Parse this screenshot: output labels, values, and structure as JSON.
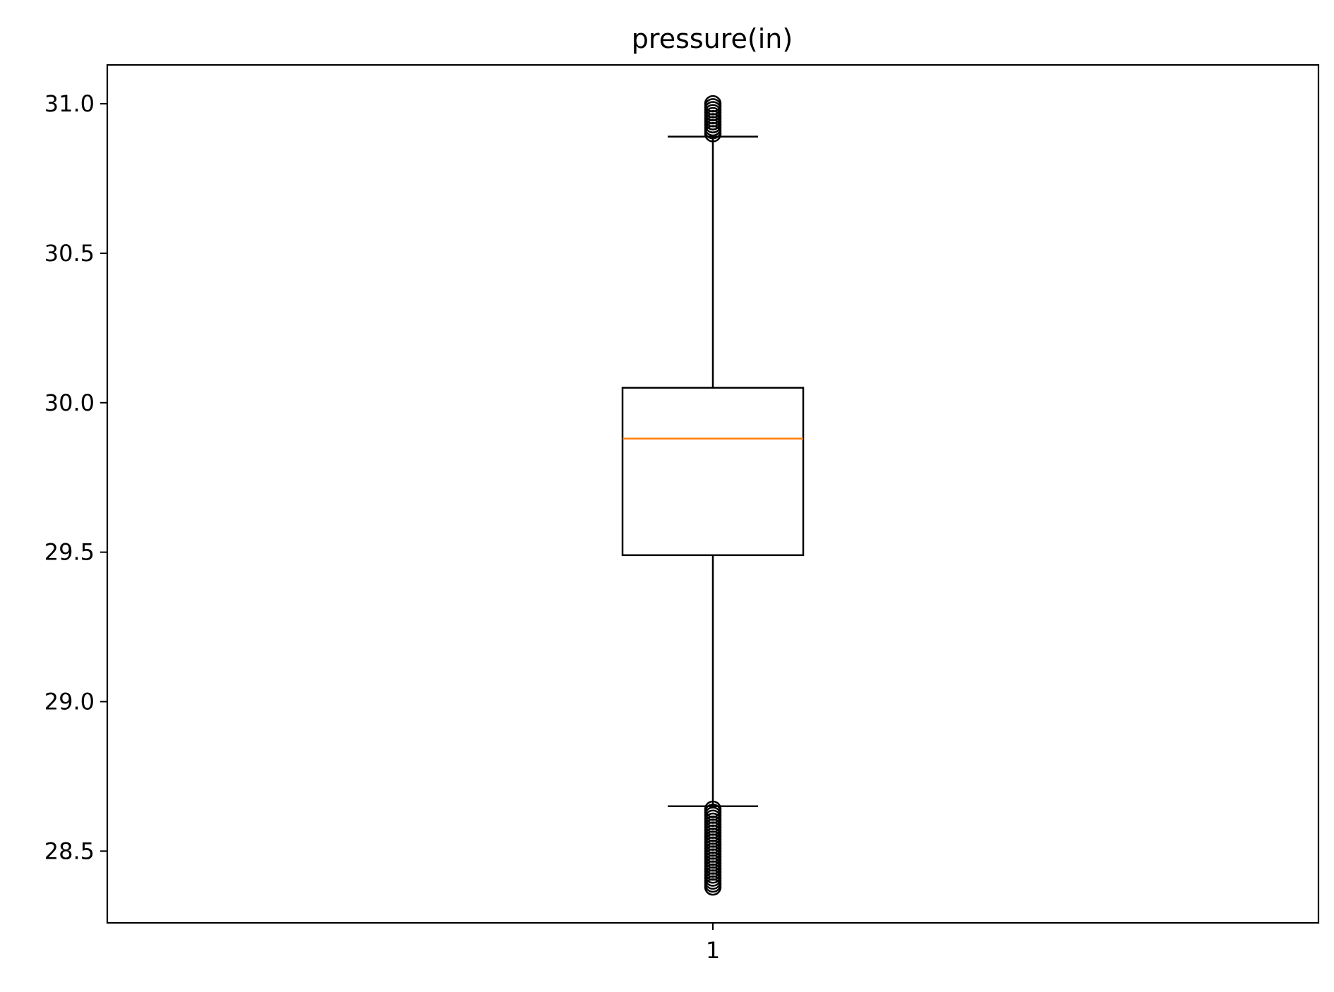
{
  "chart_data": {
    "type": "box",
    "title": "pressure(in)",
    "xlabel": "",
    "ylabel": "",
    "categories": [
      "1"
    ],
    "ylim": [
      28.26,
      31.13
    ],
    "yticks": [
      "28.5",
      "29.0",
      "29.5",
      "30.0",
      "30.5",
      "31.0"
    ],
    "grid": false,
    "boxes": [
      {
        "category": "1",
        "whisker_low": 28.65,
        "q1": 29.49,
        "median": 29.88,
        "q3": 30.05,
        "whisker_high": 30.89,
        "outliers_high": [
          30.9,
          30.91,
          30.92,
          30.93,
          30.94,
          30.95,
          30.96,
          30.97,
          30.98,
          30.99,
          31.0
        ],
        "outliers_low": [
          28.38,
          28.39,
          28.4,
          28.41,
          28.42,
          28.43,
          28.44,
          28.45,
          28.46,
          28.47,
          28.48,
          28.49,
          28.5,
          28.51,
          28.52,
          28.53,
          28.54,
          28.55,
          28.56,
          28.57,
          28.58,
          28.59,
          28.6,
          28.61,
          28.62,
          28.63,
          28.64
        ]
      }
    ],
    "colors": {
      "box": "#000000",
      "median": "#ff7f0e",
      "outlier": "#000000"
    }
  }
}
